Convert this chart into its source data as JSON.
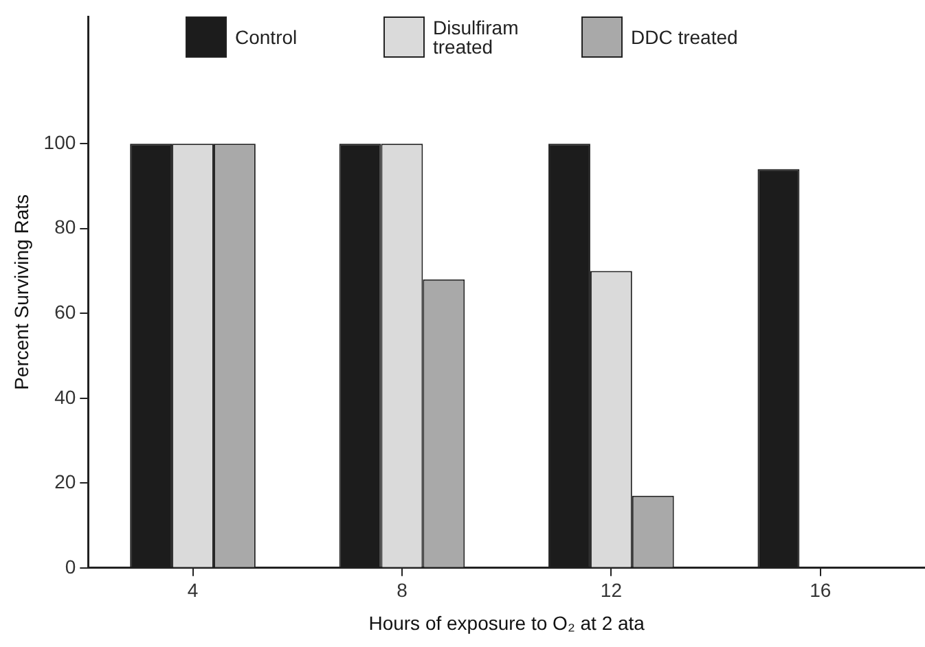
{
  "chart_data": {
    "type": "bar",
    "xlabel": "Hours of exposure to O₂ at 2 ata",
    "ylabel": "Percent Surviving Rats",
    "categories": [
      "4",
      "8",
      "12",
      "16"
    ],
    "series": [
      {
        "name": "Control",
        "color": "#1c1c1c",
        "values": [
          100,
          100,
          100,
          94
        ]
      },
      {
        "name": "Disulfiram treated",
        "color": "#dadada",
        "values": [
          100,
          100,
          70,
          0
        ]
      },
      {
        "name": "DDC treated",
        "color": "#a9a9a9",
        "values": [
          100,
          68,
          17,
          0
        ]
      }
    ],
    "ylim": [
      0,
      130
    ],
    "yticks": [
      0,
      20,
      40,
      60,
      80,
      100
    ],
    "grid": false,
    "legend": "top"
  }
}
